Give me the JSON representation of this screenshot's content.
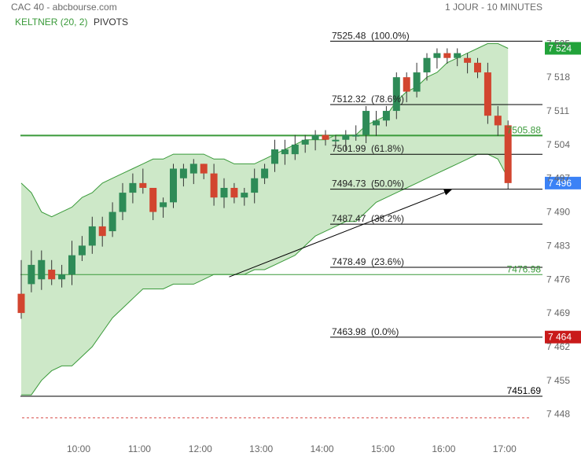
{
  "header": {
    "title": "CAC 40 - abcbourse.com",
    "period": "1 JOUR - 10 MINUTES"
  },
  "indicators": [
    {
      "label": "KELTNER (20, 2)",
      "color": "#3a9a3a"
    },
    {
      "label": "PIVOTS",
      "color": "#333333"
    }
  ],
  "colors": {
    "up": "#2e8b57",
    "down": "#d2452f",
    "band_fill": "#cde8c8",
    "band_stroke": "#3a9a3a",
    "level_line": "#000000",
    "current_price_badge": "#3b82f6",
    "high_badge": "#22a33a",
    "low_badge": "#c91a1a"
  },
  "chart_data": {
    "type": "candlestick",
    "x_ticks": [
      "10:00",
      "11:00",
      "12:00",
      "13:00",
      "14:00",
      "15:00",
      "16:00",
      "17:00"
    ],
    "y_ticks": [
      7448,
      7455,
      7462,
      7469,
      7476,
      7483,
      7490,
      7497,
      7504,
      7511,
      7518,
      7525
    ],
    "ylim": [
      7445,
      7528
    ],
    "grid": false,
    "candles": [
      [
        7473,
        7469,
        7480
      ],
      [
        7475,
        7479,
        7482
      ],
      [
        7476,
        7480,
        7482
      ],
      [
        7478,
        7476,
        7480
      ],
      [
        7476,
        7477,
        7479
      ],
      [
        7477,
        7481,
        7484
      ],
      [
        7481,
        7483,
        7485
      ],
      [
        7483,
        7487,
        7489
      ],
      [
        7487,
        7485,
        7489
      ],
      [
        7486,
        7490,
        7492
      ],
      [
        7490,
        7494,
        7496
      ],
      [
        7494,
        7496,
        7498
      ],
      [
        7496,
        7495,
        7499
      ],
      [
        7495,
        7490,
        7494
      ],
      [
        7491,
        7492,
        7493
      ],
      [
        7492,
        7499,
        7500
      ],
      [
        7497,
        7499,
        7500
      ],
      [
        7498,
        7500,
        7501
      ],
      [
        7500,
        7498,
        7500
      ],
      [
        7498,
        7493,
        7500
      ],
      [
        7493,
        7495,
        7497
      ],
      [
        7495,
        7493,
        7496
      ],
      [
        7493,
        7494,
        7495
      ],
      [
        7494,
        7497,
        7499
      ],
      [
        7497,
        7499,
        7500
      ],
      [
        7500,
        7503,
        7505
      ],
      [
        7502,
        7503,
        7505
      ],
      [
        7502,
        7504,
        7506
      ],
      [
        7504,
        7505,
        7506
      ],
      [
        7505,
        7506,
        7507
      ],
      [
        7506,
        7505,
        7507
      ],
      [
        7505,
        7505,
        7506
      ],
      [
        7505,
        7506,
        7507
      ],
      [
        7506,
        7506,
        7508
      ],
      [
        7506,
        7511,
        7512
      ],
      [
        7508,
        7509,
        7511
      ],
      [
        7509,
        7511,
        7512
      ],
      [
        7511,
        7518,
        7519
      ],
      [
        7518,
        7515,
        7519
      ],
      [
        7515,
        7519,
        7521
      ],
      [
        7519,
        7522,
        7523
      ],
      [
        7522,
        7523,
        7524
      ],
      [
        7523,
        7522,
        7524
      ],
      [
        7522,
        7523,
        7524
      ],
      [
        7522,
        7521,
        7523
      ],
      [
        7521,
        7519,
        7522
      ],
      [
        7519,
        7510,
        7521
      ],
      [
        7510,
        7508,
        7512
      ],
      [
        7508,
        7496,
        7509
      ]
    ],
    "keltner": {
      "name": "KELTNER (20, 2)",
      "upper": [
        7496,
        7494,
        7490,
        7489,
        7490,
        7491,
        7493,
        7494,
        7496,
        7497,
        7498,
        7499,
        7500,
        7501,
        7501,
        7502,
        7502,
        7502,
        7502,
        7501,
        7501,
        7500,
        7500,
        7500,
        7501,
        7502,
        7503,
        7504,
        7505,
        7505,
        7505,
        7506,
        7506,
        7506,
        7508,
        7509,
        7510,
        7513,
        7515,
        7516,
        7518,
        7519,
        7521,
        7522,
        7523,
        7524,
        7525,
        7525,
        7524
      ],
      "lower": [
        7452,
        7452,
        7455,
        7457,
        7458,
        7458,
        7460,
        7462,
        7465,
        7468,
        7470,
        7472,
        7474,
        7474,
        7474,
        7475,
        7475,
        7475,
        7476,
        7477,
        7477,
        7477,
        7477,
        7478,
        7478,
        7479,
        7480,
        7481,
        7483,
        7485,
        7486,
        7487,
        7488,
        7488,
        7490,
        7492,
        7493,
        7494,
        7495,
        7496,
        7497,
        7498,
        7499,
        7500,
        7501,
        7502,
        7502,
        7501,
        7497
      ]
    },
    "fibonacci_levels": [
      {
        "value": 7525.48,
        "label": "7525.48",
        "pct": "(100.0%)"
      },
      {
        "value": 7512.32,
        "label": "7512.32",
        "pct": "(78.6%)"
      },
      {
        "value": 7501.99,
        "label": "7501.99",
        "pct": "(61.8%)"
      },
      {
        "value": 7494.73,
        "label": "7494.73",
        "pct": "(50.0%)"
      },
      {
        "value": 7487.47,
        "label": "7487.47",
        "pct": "(38.2%)"
      },
      {
        "value": 7478.49,
        "label": "7478.49",
        "pct": "(23.6%)"
      },
      {
        "value": 7463.98,
        "label": "7463.98",
        "pct": "(0.0%)"
      }
    ],
    "pivot_lines": [
      {
        "value": 7505.88,
        "label": "7505.88",
        "color": "#3a9a3a",
        "width": 2
      },
      {
        "value": 7476.98,
        "label": "7476.98",
        "color": "#3a9a3a",
        "width": 1
      },
      {
        "value": 7451.69,
        "label": "7451.69",
        "color": "#000000",
        "width": 1
      }
    ],
    "dashed_line": {
      "value": 7447.2,
      "color": "#d9534f"
    },
    "trend_arrow": {
      "from": [
        20.5,
        7476.5
      ],
      "to": [
        42.4,
        7494.6
      ]
    },
    "price_badges": [
      {
        "value": 7524,
        "label": "7 524",
        "color": "#22a33a"
      },
      {
        "value": 7496,
        "label": "7 496",
        "color": "#3b82f6"
      },
      {
        "value": 7464,
        "label": "7 464",
        "color": "#c91a1a"
      }
    ]
  }
}
